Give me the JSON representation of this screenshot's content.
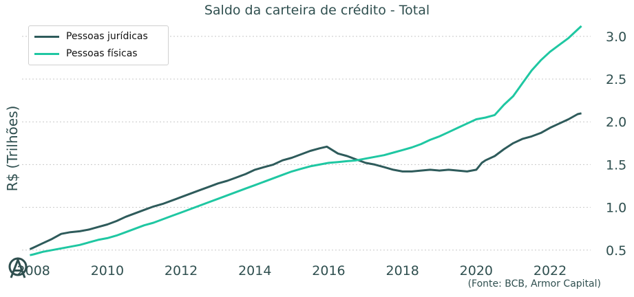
{
  "chart_data": {
    "type": "line",
    "title": "Saldo da carteira de crédito - Total",
    "ylabel": "R$ (Trilhões)",
    "xlabel": "",
    "source": "(Fonte: BCB, Armor Capital)",
    "xlim": [
      2007.8,
      2023.1
    ],
    "ylim": [
      0.45,
      3.2
    ],
    "x_ticks": [
      2008,
      2010,
      2012,
      2014,
      2016,
      2018,
      2020,
      2022
    ],
    "y_ticks": [
      0.5,
      1.0,
      1.5,
      2.0,
      2.5,
      3.0
    ],
    "x_tick_labels": [
      "2008",
      "2010",
      "2012",
      "2014",
      "2016",
      "2018",
      "2020",
      "2022"
    ],
    "y_tick_labels": [
      "0.5",
      "1.0",
      "1.5",
      "2.0",
      "2.5",
      "3.0"
    ],
    "grid": "horizontal dotted",
    "legend_position": "top-left",
    "series": [
      {
        "name": "Pessoas jurídicas",
        "color": "#2e5b5b",
        "x": [
          2007.9,
          2008.0,
          2008.25,
          2008.5,
          2008.75,
          2009.0,
          2009.25,
          2009.5,
          2009.75,
          2010.0,
          2010.25,
          2010.5,
          2010.75,
          2011.0,
          2011.25,
          2011.5,
          2011.75,
          2012.0,
          2012.25,
          2012.5,
          2012.75,
          2013.0,
          2013.25,
          2013.5,
          2013.75,
          2014.0,
          2014.25,
          2014.5,
          2014.75,
          2015.0,
          2015.25,
          2015.5,
          2015.75,
          2015.95,
          2016.25,
          2016.5,
          2016.75,
          2017.0,
          2017.25,
          2017.5,
          2017.75,
          2018.0,
          2018.25,
          2018.5,
          2018.75,
          2019.0,
          2019.25,
          2019.5,
          2019.75,
          2020.0,
          2020.15,
          2020.25,
          2020.5,
          2020.75,
          2021.0,
          2021.25,
          2021.5,
          2021.75,
          2022.0,
          2022.25,
          2022.5,
          2022.75,
          2022.85
        ],
        "y": [
          0.51,
          0.53,
          0.58,
          0.63,
          0.69,
          0.71,
          0.72,
          0.74,
          0.77,
          0.8,
          0.84,
          0.89,
          0.93,
          0.97,
          1.01,
          1.04,
          1.08,
          1.12,
          1.16,
          1.2,
          1.24,
          1.28,
          1.31,
          1.35,
          1.39,
          1.44,
          1.47,
          1.5,
          1.55,
          1.58,
          1.62,
          1.66,
          1.69,
          1.71,
          1.63,
          1.6,
          1.56,
          1.52,
          1.5,
          1.47,
          1.44,
          1.42,
          1.42,
          1.43,
          1.44,
          1.43,
          1.44,
          1.43,
          1.42,
          1.44,
          1.52,
          1.55,
          1.6,
          1.68,
          1.75,
          1.8,
          1.83,
          1.87,
          1.93,
          1.98,
          2.03,
          2.09,
          2.1
        ]
      },
      {
        "name": "Pessoas físicas",
        "color": "#1fc7a2",
        "x": [
          2007.9,
          2008.0,
          2008.25,
          2008.5,
          2008.75,
          2009.0,
          2009.25,
          2009.5,
          2009.75,
          2010.0,
          2010.25,
          2010.5,
          2010.75,
          2011.0,
          2011.25,
          2011.5,
          2011.75,
          2012.0,
          2012.25,
          2012.5,
          2012.75,
          2013.0,
          2013.25,
          2013.5,
          2013.75,
          2014.0,
          2014.25,
          2014.5,
          2014.75,
          2015.0,
          2015.25,
          2015.5,
          2015.75,
          2016.0,
          2016.25,
          2016.5,
          2016.75,
          2017.0,
          2017.25,
          2017.5,
          2017.75,
          2018.0,
          2018.25,
          2018.5,
          2018.75,
          2019.0,
          2019.25,
          2019.5,
          2019.75,
          2020.0,
          2020.25,
          2020.5,
          2020.75,
          2021.0,
          2021.25,
          2021.5,
          2021.75,
          2022.0,
          2022.25,
          2022.5,
          2022.75,
          2022.85
        ],
        "y": [
          0.44,
          0.45,
          0.48,
          0.5,
          0.52,
          0.54,
          0.56,
          0.59,
          0.62,
          0.64,
          0.67,
          0.71,
          0.75,
          0.79,
          0.82,
          0.86,
          0.9,
          0.94,
          0.98,
          1.02,
          1.06,
          1.1,
          1.14,
          1.18,
          1.22,
          1.26,
          1.3,
          1.34,
          1.38,
          1.42,
          1.45,
          1.48,
          1.5,
          1.52,
          1.53,
          1.54,
          1.55,
          1.57,
          1.59,
          1.61,
          1.64,
          1.67,
          1.7,
          1.74,
          1.79,
          1.83,
          1.88,
          1.93,
          1.98,
          2.03,
          2.05,
          2.08,
          2.2,
          2.3,
          2.45,
          2.6,
          2.72,
          2.82,
          2.9,
          2.98,
          3.08,
          3.12
        ]
      }
    ]
  }
}
